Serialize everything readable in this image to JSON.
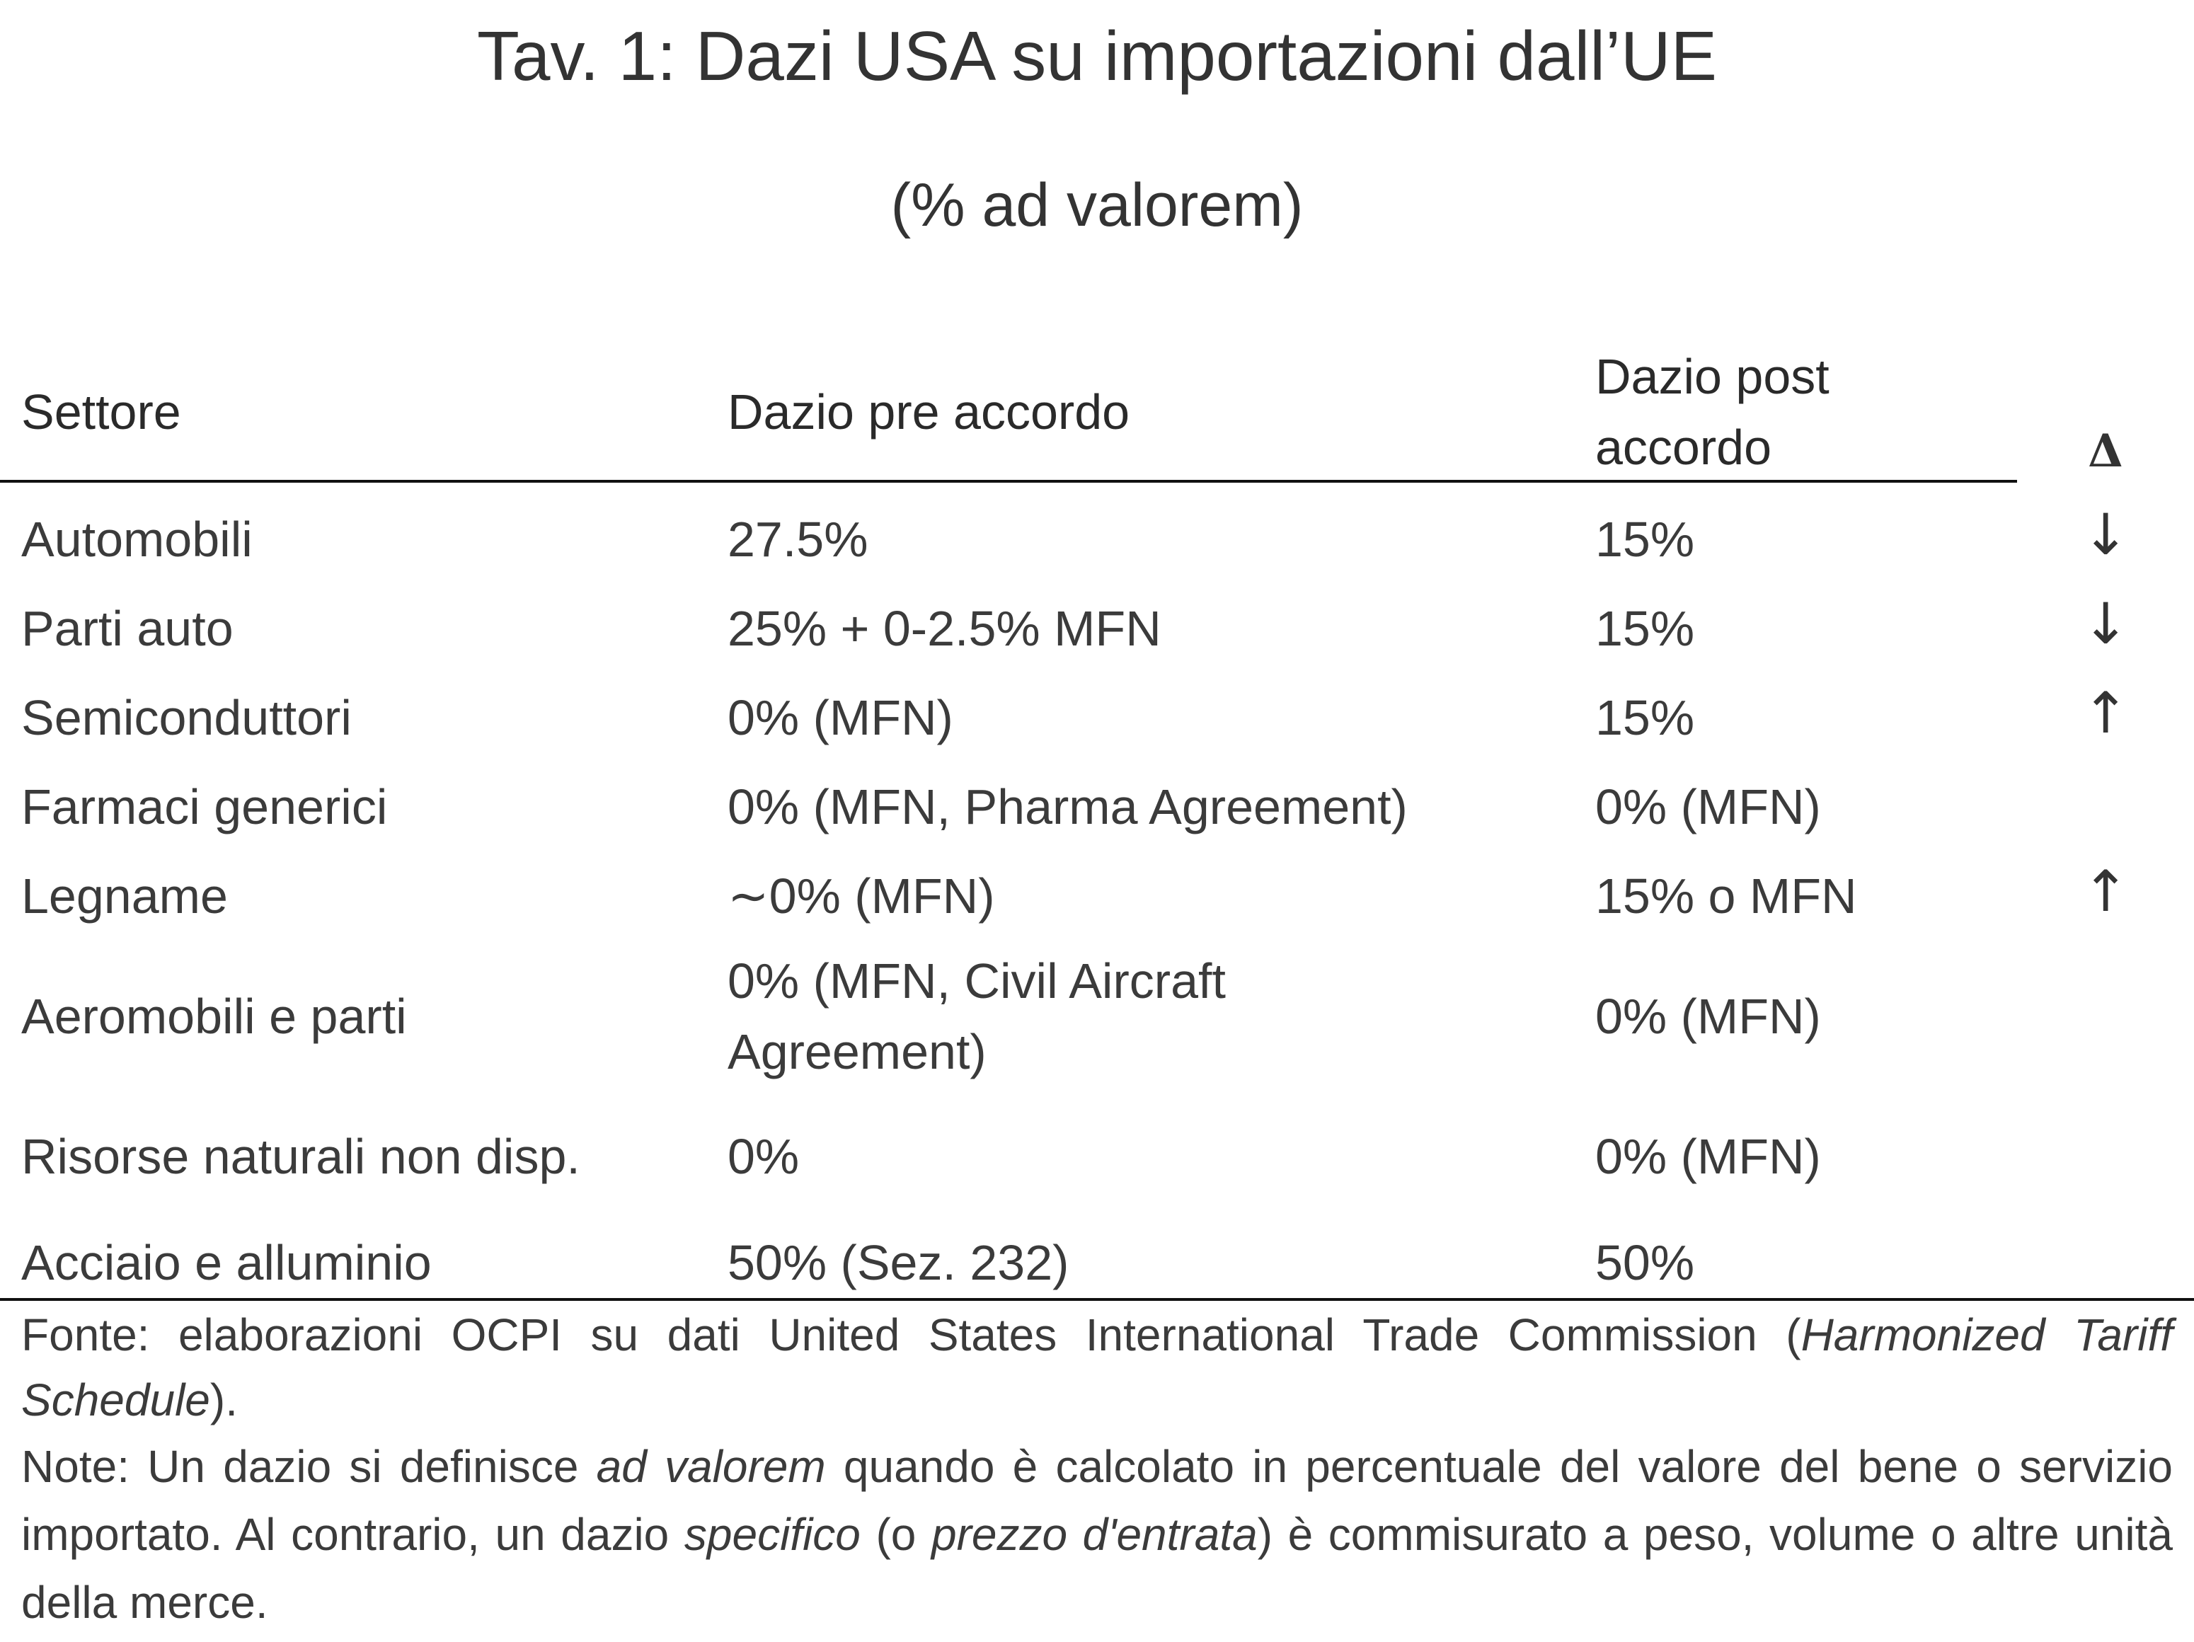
{
  "title": "Tav. 1: Dazi USA su importazioni dall’UE",
  "subtitle": "(% ad valorem)",
  "table": {
    "headers": {
      "sector": "Settore",
      "pre": "Dazio pre accordo",
      "post_line1": "Dazio post",
      "post_line2": "accordo",
      "delta": "Δ"
    },
    "rows": [
      {
        "sector": "Automobili",
        "pre": "27.5%",
        "pre_line2": "",
        "post": "15%",
        "delta": "↓"
      },
      {
        "sector": "Parti auto",
        "pre": "25% + 0-2.5% MFN",
        "pre_line2": "",
        "post": "15%",
        "delta": "↓"
      },
      {
        "sector": "Semiconduttori",
        "pre": "0% (MFN)",
        "pre_line2": "",
        "post": "15%",
        "delta": "↑"
      },
      {
        "sector": "Farmaci generici",
        "pre": "0% (MFN, Pharma Agreement)",
        "pre_line2": "",
        "post": "0% (MFN)",
        "delta": ""
      },
      {
        "sector": "Legname",
        "pre": "∼0% (MFN)",
        "pre_line2": "",
        "post": "15% o MFN",
        "delta": "↑"
      },
      {
        "sector": "Aeromobili e parti",
        "pre": "0% (MFN, Civil Aircraft",
        "pre_line2": "Agreement)",
        "post": "0% (MFN)",
        "delta": ""
      },
      {
        "sector": "Risorse naturali non disp.",
        "pre": "0%",
        "pre_line2": "",
        "post": "0% (MFN)",
        "delta": ""
      },
      {
        "sector": "Acciaio e alluminio",
        "pre": "50% (Sez. 232)",
        "pre_line2": "",
        "post": "50%",
        "delta": ""
      }
    ]
  },
  "source": {
    "prefix": "Fonte: elaborazioni OCPI su dati United States International Trade Commission (",
    "italic": "Harmonized Tariff Schedule",
    "suffix": ")."
  },
  "note": {
    "p1": "Note: Un dazio si definisce ",
    "i1": "ad valorem",
    "p2": " quando è calcolato in percentuale del valore del bene o servizio importato. Al contrario, un dazio ",
    "i2": "specifico",
    "p3": " (o ",
    "i3": "prezzo d'entrata",
    "p4": ") è commisurato a peso, volume o altre unità della merce."
  }
}
